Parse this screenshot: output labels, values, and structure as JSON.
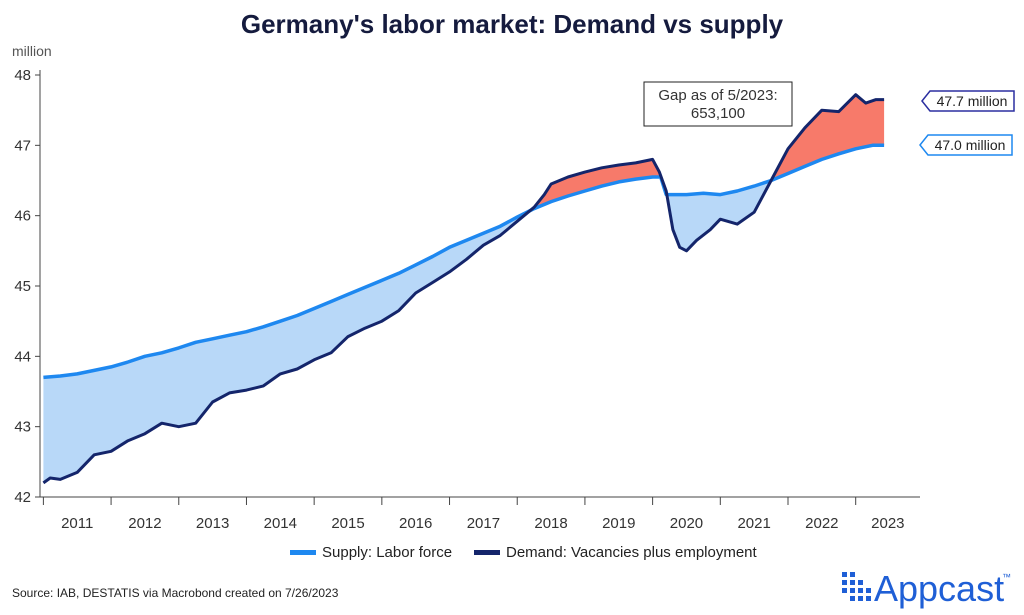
{
  "chart_data": {
    "type": "line",
    "title": "Germany's labor market: Demand vs supply",
    "ylabel": "million",
    "ylim": [
      42,
      48
    ],
    "yticks": [
      42,
      43,
      44,
      45,
      46,
      47,
      48
    ],
    "xlim": [
      2010.95,
      2023.95
    ],
    "x_tick_labels": [
      "2011",
      "2012",
      "2013",
      "2014",
      "2015",
      "2016",
      "2017",
      "2018",
      "2019",
      "2020",
      "2021",
      "2022",
      "2023"
    ],
    "series": [
      {
        "name": "Supply: Labor force",
        "color": "#1e88f0",
        "points": [
          [
            2011.0,
            43.7
          ],
          [
            2011.25,
            43.72
          ],
          [
            2011.5,
            43.75
          ],
          [
            2011.75,
            43.8
          ],
          [
            2012.0,
            43.85
          ],
          [
            2012.25,
            43.92
          ],
          [
            2012.5,
            44.0
          ],
          [
            2012.75,
            44.05
          ],
          [
            2013.0,
            44.12
          ],
          [
            2013.25,
            44.2
          ],
          [
            2013.5,
            44.25
          ],
          [
            2013.75,
            44.3
          ],
          [
            2014.0,
            44.35
          ],
          [
            2014.25,
            44.42
          ],
          [
            2014.5,
            44.5
          ],
          [
            2014.75,
            44.58
          ],
          [
            2015.0,
            44.68
          ],
          [
            2015.25,
            44.78
          ],
          [
            2015.5,
            44.88
          ],
          [
            2015.75,
            44.98
          ],
          [
            2016.0,
            45.08
          ],
          [
            2016.25,
            45.18
          ],
          [
            2016.5,
            45.3
          ],
          [
            2016.75,
            45.42
          ],
          [
            2017.0,
            45.55
          ],
          [
            2017.25,
            45.65
          ],
          [
            2017.5,
            45.75
          ],
          [
            2017.75,
            45.85
          ],
          [
            2018.0,
            45.98
          ],
          [
            2018.25,
            46.1
          ],
          [
            2018.5,
            46.2
          ],
          [
            2018.75,
            46.28
          ],
          [
            2019.0,
            46.35
          ],
          [
            2019.25,
            46.42
          ],
          [
            2019.5,
            46.48
          ],
          [
            2019.75,
            46.52
          ],
          [
            2020.0,
            46.55
          ],
          [
            2020.12,
            46.55
          ],
          [
            2020.2,
            46.3
          ],
          [
            2020.5,
            46.3
          ],
          [
            2020.75,
            46.32
          ],
          [
            2021.0,
            46.3
          ],
          [
            2021.25,
            46.35
          ],
          [
            2021.5,
            46.42
          ],
          [
            2021.75,
            46.5
          ],
          [
            2022.0,
            46.6
          ],
          [
            2022.25,
            46.7
          ],
          [
            2022.5,
            46.8
          ],
          [
            2022.75,
            46.88
          ],
          [
            2023.0,
            46.95
          ],
          [
            2023.25,
            47.0
          ],
          [
            2023.42,
            47.0
          ]
        ]
      },
      {
        "name": "Demand: Vacancies plus employment",
        "color": "#14256b",
        "points": [
          [
            2011.0,
            42.2
          ],
          [
            2011.1,
            42.27
          ],
          [
            2011.25,
            42.25
          ],
          [
            2011.5,
            42.35
          ],
          [
            2011.75,
            42.6
          ],
          [
            2012.0,
            42.65
          ],
          [
            2012.25,
            42.8
          ],
          [
            2012.5,
            42.9
          ],
          [
            2012.75,
            43.05
          ],
          [
            2013.0,
            43.0
          ],
          [
            2013.25,
            43.05
          ],
          [
            2013.5,
            43.35
          ],
          [
            2013.75,
            43.48
          ],
          [
            2014.0,
            43.52
          ],
          [
            2014.25,
            43.58
          ],
          [
            2014.5,
            43.75
          ],
          [
            2014.75,
            43.82
          ],
          [
            2015.0,
            43.95
          ],
          [
            2015.25,
            44.05
          ],
          [
            2015.5,
            44.28
          ],
          [
            2015.75,
            44.4
          ],
          [
            2016.0,
            44.5
          ],
          [
            2016.25,
            44.65
          ],
          [
            2016.5,
            44.9
          ],
          [
            2016.75,
            45.05
          ],
          [
            2017.0,
            45.2
          ],
          [
            2017.25,
            45.38
          ],
          [
            2017.5,
            45.58
          ],
          [
            2017.75,
            45.72
          ],
          [
            2018.0,
            45.92
          ],
          [
            2018.25,
            46.12
          ],
          [
            2018.4,
            46.3
          ],
          [
            2018.5,
            46.45
          ],
          [
            2018.75,
            46.55
          ],
          [
            2019.0,
            46.62
          ],
          [
            2019.25,
            46.68
          ],
          [
            2019.5,
            46.72
          ],
          [
            2019.75,
            46.75
          ],
          [
            2020.0,
            46.8
          ],
          [
            2020.1,
            46.62
          ],
          [
            2020.2,
            46.35
          ],
          [
            2020.3,
            45.8
          ],
          [
            2020.4,
            45.55
          ],
          [
            2020.5,
            45.5
          ],
          [
            2020.65,
            45.65
          ],
          [
            2020.85,
            45.8
          ],
          [
            2021.0,
            45.95
          ],
          [
            2021.25,
            45.88
          ],
          [
            2021.5,
            46.05
          ],
          [
            2021.75,
            46.5
          ],
          [
            2022.0,
            46.95
          ],
          [
            2022.25,
            47.25
          ],
          [
            2022.5,
            47.5
          ],
          [
            2022.75,
            47.48
          ],
          [
            2023.0,
            47.72
          ],
          [
            2023.15,
            47.6
          ],
          [
            2023.3,
            47.65
          ],
          [
            2023.42,
            47.65
          ]
        ]
      }
    ],
    "fill_colors": {
      "supply_above": "#b8d8f8",
      "demand_above": "#f77a6a"
    },
    "end_labels": [
      "47.7 million",
      "47.0 million"
    ],
    "annotation": "Gap as of 5/2023: 653,100",
    "legend_position": "bottom",
    "grid": false
  },
  "footer": {
    "source": "Source: IAB, DESTATIS via Macrobond created on 7/26/2023",
    "brand": "Appcast",
    "trademark": "™"
  }
}
